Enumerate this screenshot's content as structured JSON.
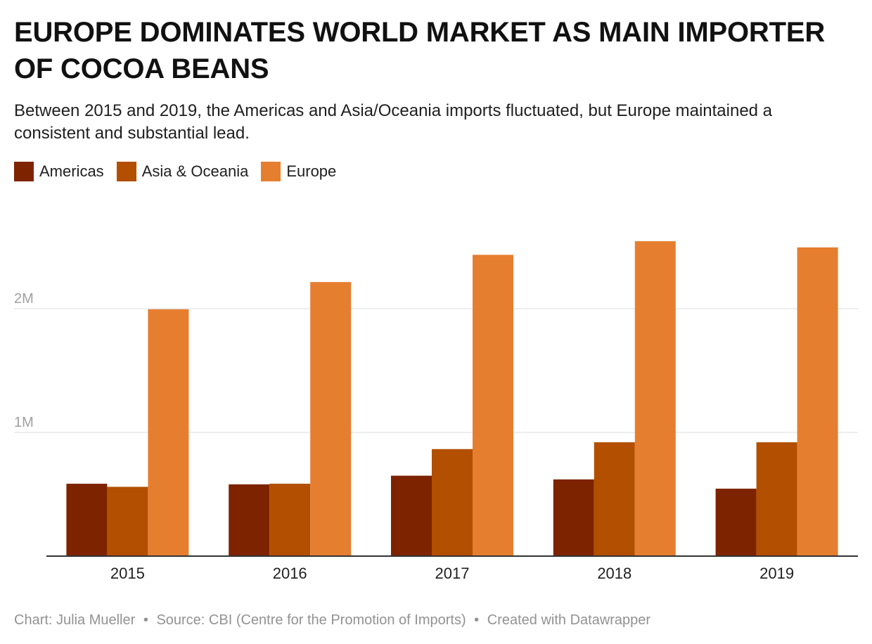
{
  "title": "EUROPE DOMINATES WORLD MARKET AS MAIN IMPORTER OF COCOA BEANS",
  "subtitle": "Between 2015 and 2019, the Americas and Asia/Oceania imports fluctuated, but Europe maintained a consistent and substantial lead.",
  "footer": {
    "chart_credit": "Chart: Julia Mueller",
    "source": "Source: CBI (Centre for the Promotion of Imports)",
    "created_with": "Created with Datawrapper",
    "separator": "•"
  },
  "colors": {
    "Americas": "#7e2300",
    "Asia & Oceania": "#b24f00",
    "Europe": "#e67e30",
    "grid": "#dddddd",
    "axis": "#333333",
    "tick_label": "#a0a0a0"
  },
  "chart_data": {
    "type": "bar",
    "title": "EUROPE DOMINATES WORLD MARKET AS MAIN IMPORTER OF COCOA BEANS",
    "subtitle": "Between 2015 and 2019, the Americas and Asia/Oceania imports fluctuated, but Europe maintained a consistent and substantial lead.",
    "xlabel": "",
    "ylabel": "",
    "categories": [
      "2015",
      "2016",
      "2017",
      "2018",
      "2019"
    ],
    "series": [
      {
        "name": "Americas",
        "values": [
          585000,
          580000,
          650000,
          620000,
          545000
        ]
      },
      {
        "name": "Asia & Oceania",
        "values": [
          560000,
          585000,
          865000,
          920000,
          920000
        ]
      },
      {
        "name": "Europe",
        "values": [
          1995000,
          2215000,
          2435000,
          2545000,
          2495000
        ]
      }
    ],
    "ylim": [
      0,
      2600000
    ],
    "yticks": [
      {
        "value": 1000000,
        "label": "1M"
      },
      {
        "value": 2000000,
        "label": "2M"
      }
    ],
    "grid": true,
    "legend_position": "top-left"
  }
}
